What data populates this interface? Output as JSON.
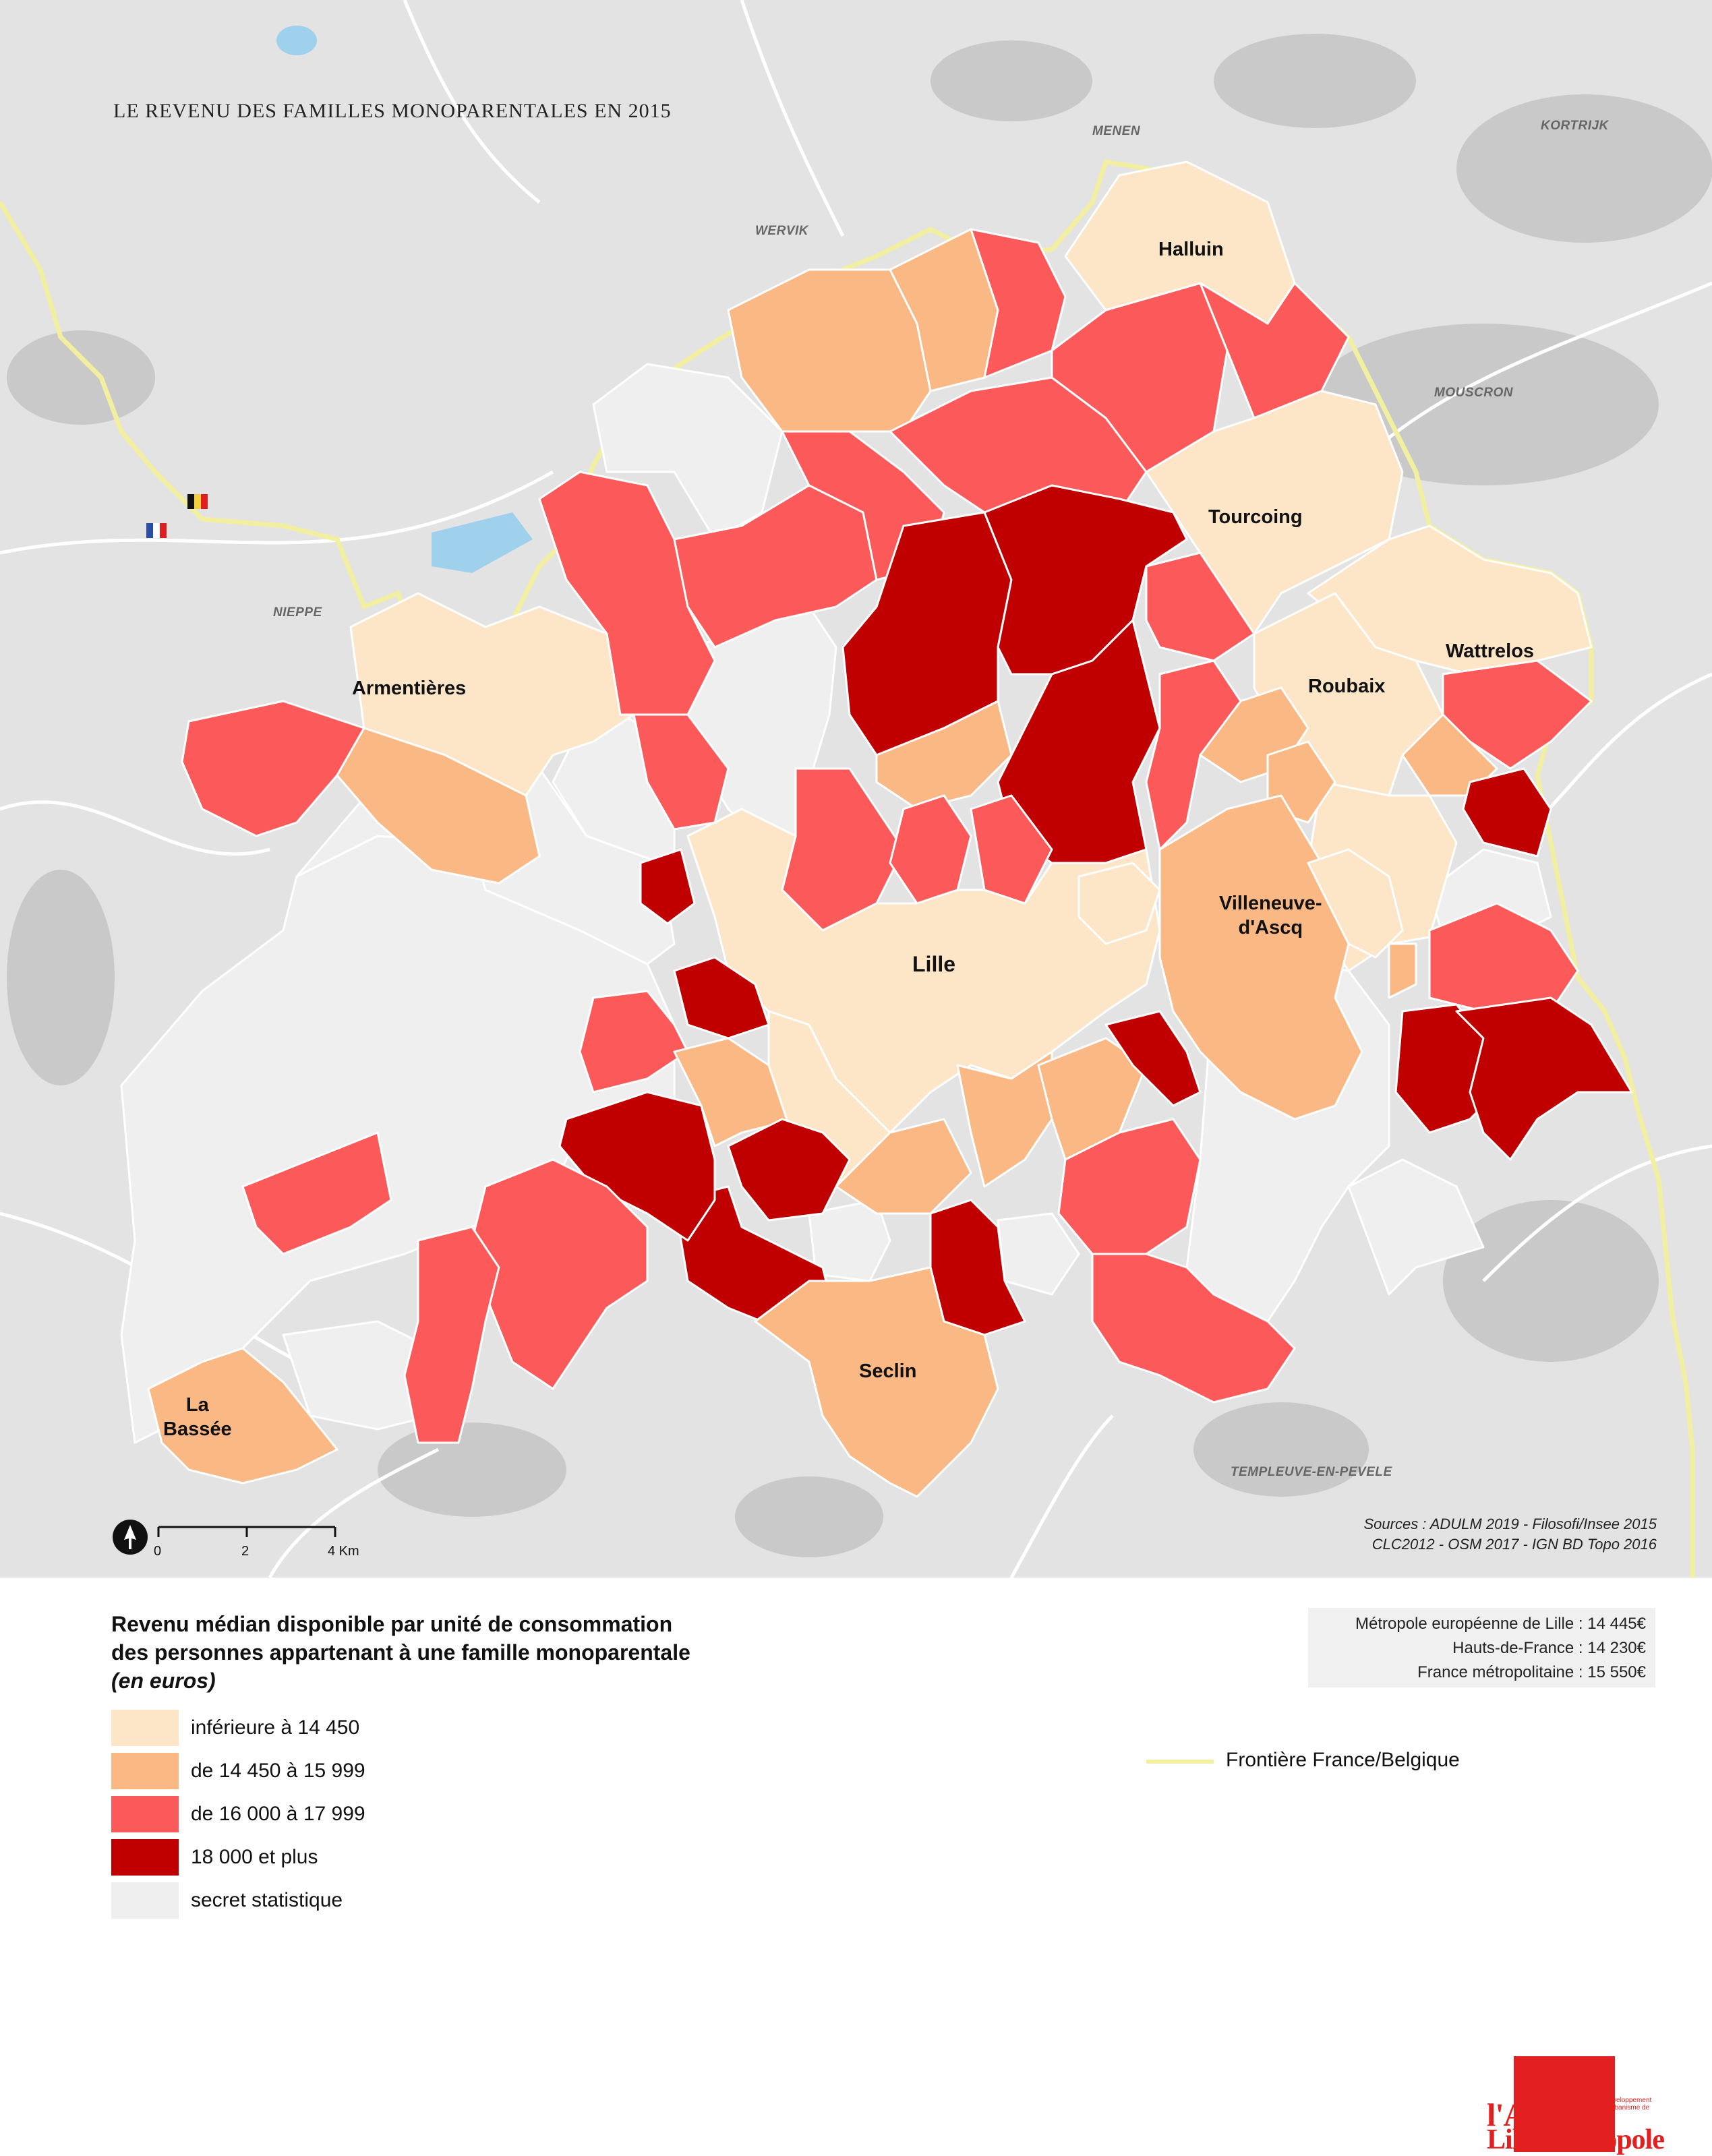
{
  "title": "LE REVENU DES FAMILLES MONOPARENTALES EN 2015",
  "cities": {
    "halluin": "Halluin",
    "tourcoing": "Tourcoing",
    "wattrelos": "Wattrelos",
    "roubaix": "Roubaix",
    "armentieres": "Armentières",
    "villeneuve_1": "Villeneuve-",
    "villeneuve_2": "d'Ascq",
    "lille": "Lille",
    "seclin": "Seclin",
    "labassee_1": "La",
    "labassee_2": "Bassée"
  },
  "belgian_towns": {
    "menen": "MENEN",
    "kortrijk": "KORTRIJK",
    "wervik": "WERVIK",
    "mouscron": "MOUSCRON",
    "nieppe": "NIEPPE",
    "templeuve": "TEMPLEUVE-EN-PEVELE"
  },
  "scale": {
    "t0": "0",
    "t1": "2",
    "t2": "4 Km"
  },
  "sources": {
    "line1": "Sources : ADULM 2019 - Filosofi/Insee 2015",
    "line2": "CLC2012 -  OSM 2017 - IGN BD Topo 2016"
  },
  "legend": {
    "title_line1": "Revenu médian disponible par unité de consommation",
    "title_line2": "des personnes appartenant à une famille monoparentale",
    "unit": "(en euros)",
    "classes": [
      {
        "label": "inférieure à 14 450",
        "color": "#fde5c8"
      },
      {
        "label": "de 14 450 à 15 999",
        "color": "#f9b884"
      },
      {
        "label": "de 16 000 à 17 999",
        "color": "#fc5a5a"
      },
      {
        "label": "18 000 et plus",
        "color": "#c00000"
      },
      {
        "label": "secret statistique",
        "color": "#efefef"
      }
    ]
  },
  "references": {
    "line1": "Métropole européenne de Lille : 14 445€",
    "line2": "Hauts-de-France : 14 230€",
    "line3": "France métropolitaine : 15 550€"
  },
  "border_legend": {
    "label": "Frontière France/Belgique",
    "color": "#f2f0a0"
  },
  "logo": {
    "name_top": "l'Agence",
    "name_bottom": "Lille Métropole",
    "tagline_1": "de développement",
    "tagline_2": "et d'urbanisme de"
  }
}
